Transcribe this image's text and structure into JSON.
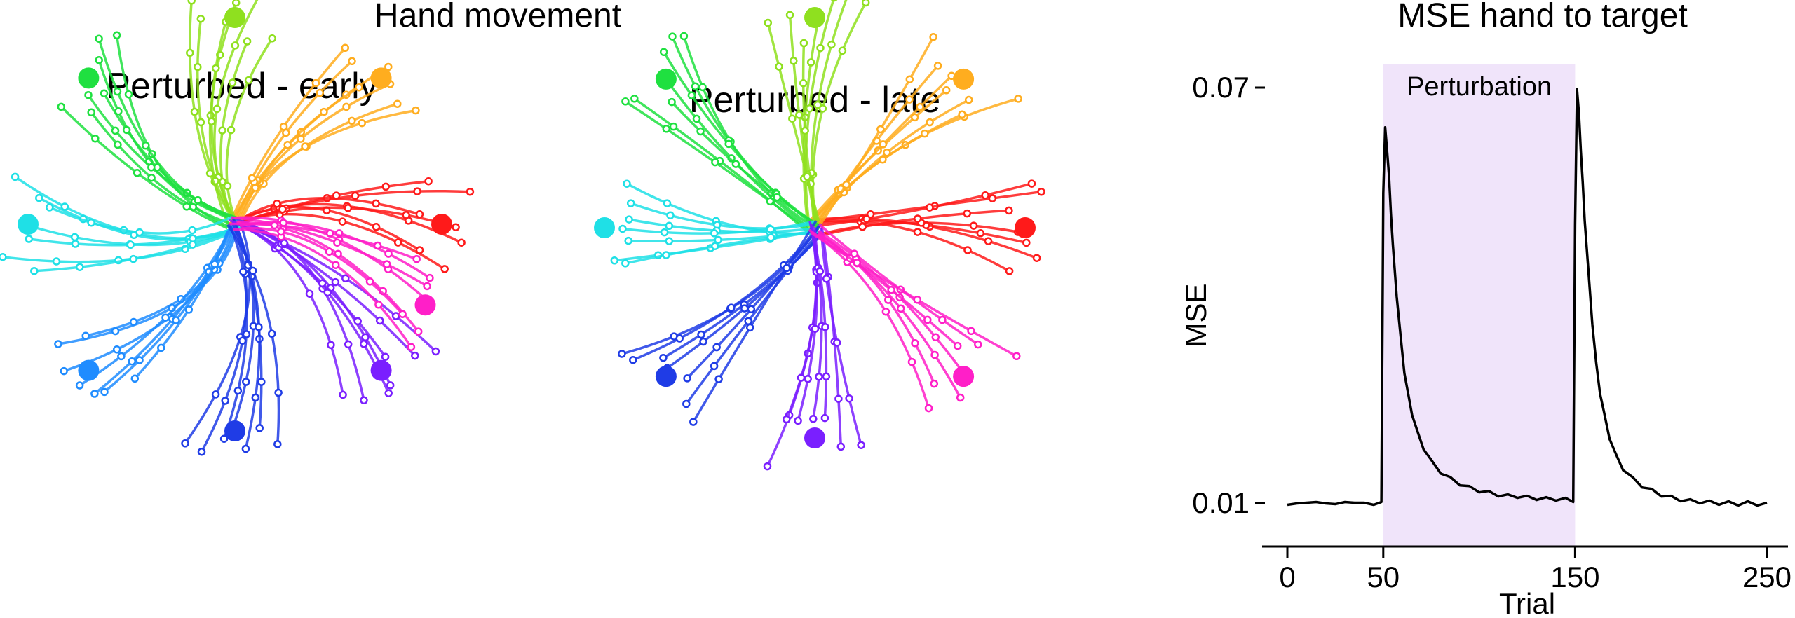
{
  "figure": {
    "left_title": "Hand movement",
    "right_title": "MSE hand to target"
  },
  "chart_data": [
    {
      "type": "scatter",
      "title": "Perturbed - early",
      "description_kind": "reach-trajectories",
      "targets": [
        {
          "direction_deg": 0,
          "color": "#ff1a1a"
        },
        {
          "direction_deg": 45,
          "color": "#ffad1f"
        },
        {
          "direction_deg": 90,
          "color": "#8fe01f"
        },
        {
          "direction_deg": 135,
          "color": "#1fe040"
        },
        {
          "direction_deg": 180,
          "color": "#1fe0e6"
        },
        {
          "direction_deg": 225,
          "color": "#1f8cff"
        },
        {
          "direction_deg": 270,
          "color": "#1f3ce6"
        },
        {
          "direction_deg": 315,
          "color": "#7a1fff"
        },
        {
          "direction_deg": 337,
          "color": "#ff1fc8"
        }
      ],
      "rotation_deg": 30
    },
    {
      "type": "scatter",
      "title": "Perturbed - late",
      "description_kind": "reach-trajectories",
      "targets": [
        {
          "direction_deg": 0,
          "color": "#ff1a1a"
        },
        {
          "direction_deg": 45,
          "color": "#ffad1f"
        },
        {
          "direction_deg": 90,
          "color": "#8fe01f"
        },
        {
          "direction_deg": 135,
          "color": "#1fe040"
        },
        {
          "direction_deg": 180,
          "color": "#1fe0e6"
        },
        {
          "direction_deg": 225,
          "color": "#1f3ce6"
        },
        {
          "direction_deg": 270,
          "color": "#7a1fff"
        },
        {
          "direction_deg": 315,
          "color": "#ff1fc8"
        }
      ],
      "rotation_deg": 12
    },
    {
      "type": "line",
      "title": "",
      "xlabel": "Trial",
      "ylabel": "MSE",
      "xlim": [
        0,
        250
      ],
      "ylim": [
        0.01,
        0.07
      ],
      "x_ticks": [
        0,
        50,
        150,
        250
      ],
      "x_tick_labels": [
        "0",
        "50",
        "150",
        "250"
      ],
      "y_ticks": [
        0.01,
        0.07
      ],
      "y_tick_labels": [
        "0.01",
        "0.07"
      ],
      "shaded_region": {
        "x_start": 50,
        "x_end": 150,
        "label": "Perturbation",
        "color": "#f0e4fa"
      },
      "series": [
        {
          "color": "#000000",
          "x": [
            0,
            5,
            10,
            15,
            20,
            25,
            30,
            35,
            40,
            45,
            49,
            50,
            51,
            52,
            53,
            54,
            55,
            57,
            59,
            61,
            63,
            65,
            68,
            71,
            75,
            80,
            85,
            90,
            95,
            100,
            105,
            110,
            115,
            120,
            125,
            130,
            135,
            140,
            145,
            149,
            150,
            151,
            152,
            153,
            154,
            155,
            157,
            159,
            161,
            163,
            165,
            168,
            171,
            175,
            180,
            185,
            190,
            195,
            200,
            205,
            210,
            215,
            220,
            225,
            230,
            235,
            240,
            245,
            250
          ],
          "y": [
            0.0095,
            0.0102,
            0.0098,
            0.0104,
            0.0097,
            0.0101,
            0.0099,
            0.0103,
            0.0098,
            0.01,
            0.0099,
            0.055,
            0.064,
            0.061,
            0.057,
            0.052,
            0.047,
            0.04,
            0.034,
            0.029,
            0.0255,
            0.023,
            0.02,
            0.018,
            0.016,
            0.0145,
            0.0135,
            0.0128,
            0.0122,
            0.0118,
            0.0115,
            0.0112,
            0.011,
            0.011,
            0.0108,
            0.0107,
            0.0106,
            0.0106,
            0.0105,
            0.0104,
            0.05,
            0.07,
            0.066,
            0.061,
            0.056,
            0.051,
            0.043,
            0.036,
            0.03,
            0.026,
            0.023,
            0.0195,
            0.017,
            0.015,
            0.0135,
            0.0125,
            0.0118,
            0.0112,
            0.0108,
            0.0105,
            0.0103,
            0.0102,
            0.0101,
            0.01,
            0.01,
            0.0099,
            0.01,
            0.0099,
            0.0098
          ]
        }
      ]
    }
  ]
}
